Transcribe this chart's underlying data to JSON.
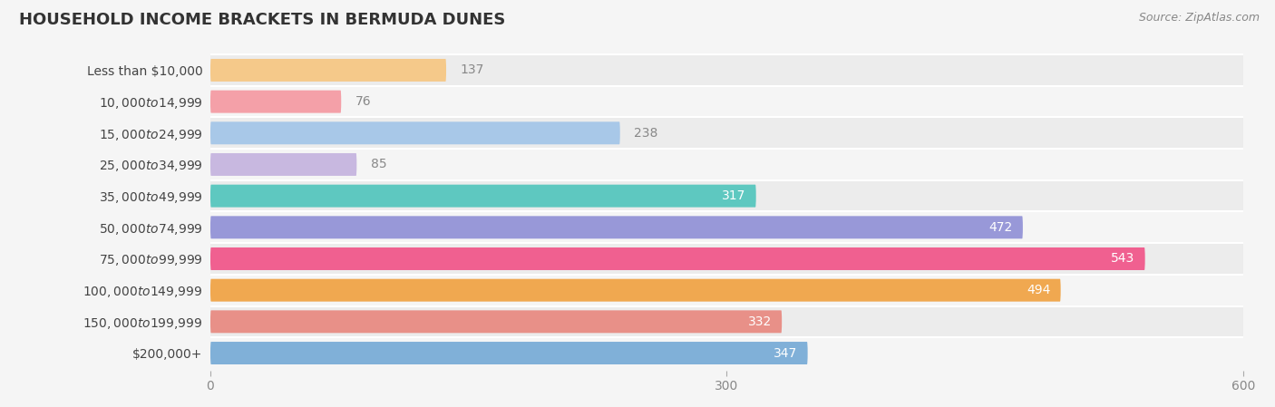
{
  "title": "HOUSEHOLD INCOME BRACKETS IN BERMUDA DUNES",
  "source": "Source: ZipAtlas.com",
  "categories": [
    "Less than $10,000",
    "$10,000 to $14,999",
    "$15,000 to $24,999",
    "$25,000 to $34,999",
    "$35,000 to $49,999",
    "$50,000 to $74,999",
    "$75,000 to $99,999",
    "$100,000 to $149,999",
    "$150,000 to $199,999",
    "$200,000+"
  ],
  "values": [
    137,
    76,
    238,
    85,
    317,
    472,
    543,
    494,
    332,
    347
  ],
  "colors": [
    "#F5C98A",
    "#F4A0A8",
    "#A8C8E8",
    "#C8B8E0",
    "#5EC8C0",
    "#9898D8",
    "#F06090",
    "#F0A850",
    "#E89088",
    "#80B0D8"
  ],
  "xlim": [
    0,
    600
  ],
  "xticks": [
    0,
    300,
    600
  ],
  "bar_height": 0.72,
  "background_color": "#f5f5f5",
  "row_color_even": "#ececec",
  "row_color_odd": "#f5f5f5",
  "label_color_inside": "#ffffff",
  "label_color_outside": "#888888",
  "title_fontsize": 13,
  "tick_fontsize": 10,
  "label_fontsize": 10,
  "cat_fontsize": 10
}
